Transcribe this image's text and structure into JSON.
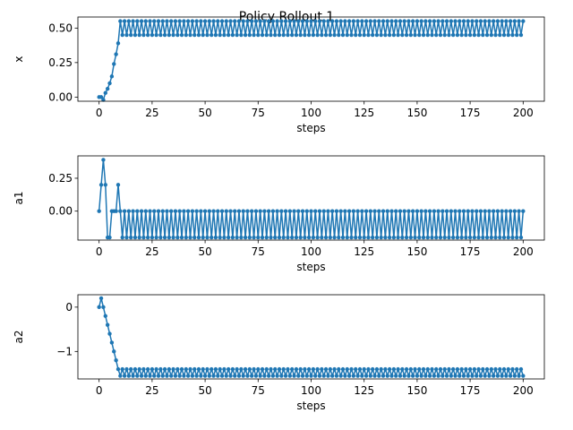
{
  "chart_data": {
    "type": "line",
    "title": "Policy Rollout 1",
    "series_color": "#1f77b4",
    "subplots": [
      {
        "ylabel": "x",
        "xlabel": "steps",
        "xlim": [
          -10,
          210
        ],
        "ylim": [
          -0.03,
          0.58
        ],
        "xticks": [
          0,
          25,
          50,
          75,
          100,
          125,
          150,
          175,
          200
        ],
        "yticks": [
          0.0,
          0.25,
          0.5
        ],
        "ytick_labels": [
          "0.00",
          "0.25",
          "0.50"
        ],
        "initial_values": [
          0.0,
          0.0,
          -0.02,
          0.03,
          0.06,
          0.1,
          0.15,
          0.24,
          0.31,
          0.39,
          0.55
        ],
        "pattern_start": 11,
        "pattern": [
          0.45,
          0.55
        ],
        "end": 200
      },
      {
        "ylabel": "a1",
        "xlabel": "steps",
        "xlim": [
          -10,
          210
        ],
        "ylim": [
          -0.22,
          0.42
        ],
        "xticks": [
          0,
          25,
          50,
          75,
          100,
          125,
          150,
          175,
          200
        ],
        "yticks": [
          0.0,
          0.25
        ],
        "ytick_labels": [
          "0.00",
          "0.25"
        ],
        "initial_values": [
          0.0,
          0.2,
          0.39,
          0.2,
          -0.2,
          -0.2,
          0.0,
          0.0,
          0.0,
          0.2,
          0.0
        ],
        "pattern_start": 11,
        "pattern": [
          -0.2,
          0.0
        ],
        "end": 200
      },
      {
        "ylabel": "a2",
        "xlabel": "steps",
        "xlim": [
          -10,
          210
        ],
        "ylim": [
          -1.62,
          0.28
        ],
        "xticks": [
          0,
          25,
          50,
          75,
          100,
          125,
          150,
          175,
          200
        ],
        "yticks": [
          0,
          -1
        ],
        "ytick_labels": [
          "0",
          "−1"
        ],
        "initial_values": [
          0.0,
          0.2,
          0.0,
          -0.2,
          -0.4,
          -0.6,
          -0.8,
          -1.0,
          -1.2,
          -1.4,
          -1.55
        ],
        "pattern_start": 11,
        "pattern": [
          -1.4,
          -1.55
        ],
        "end": 200
      }
    ]
  }
}
